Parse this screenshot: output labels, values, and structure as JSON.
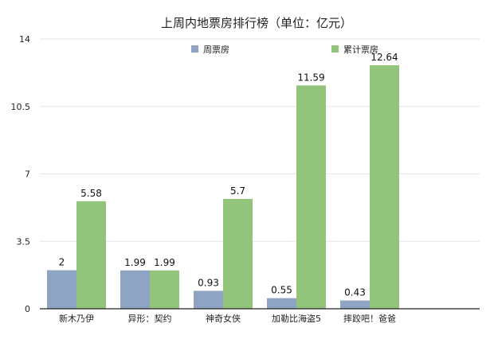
{
  "chart_data": {
    "type": "bar",
    "title": "上周内地票房排行榜（单位：亿元）",
    "categories": [
      "新木乃伊",
      "异形：契约",
      "神奇女侠",
      "加勒比海盗5",
      "摔跤吧！爸爸"
    ],
    "series": [
      {
        "name": "周票房",
        "values": [
          2,
          1.99,
          0.93,
          0.55,
          0.43
        ],
        "color": "#8ea4c2"
      },
      {
        "name": "累计票房",
        "values": [
          5.58,
          1.99,
          5.7,
          11.59,
          12.64
        ],
        "color": "#92c47b"
      }
    ],
    "data_labels": [
      [
        "2",
        "1.99",
        "0.93",
        "0.55",
        "0.43"
      ],
      [
        "5.58",
        "1.99",
        "5.7",
        "11.59",
        "12.64"
      ]
    ],
    "ylim": [
      0,
      14
    ],
    "yticks": [
      "0",
      "3.5",
      "7",
      "10.5",
      "14"
    ],
    "xlabel": "",
    "ylabel": "",
    "grid": true,
    "legend": "top-center"
  }
}
